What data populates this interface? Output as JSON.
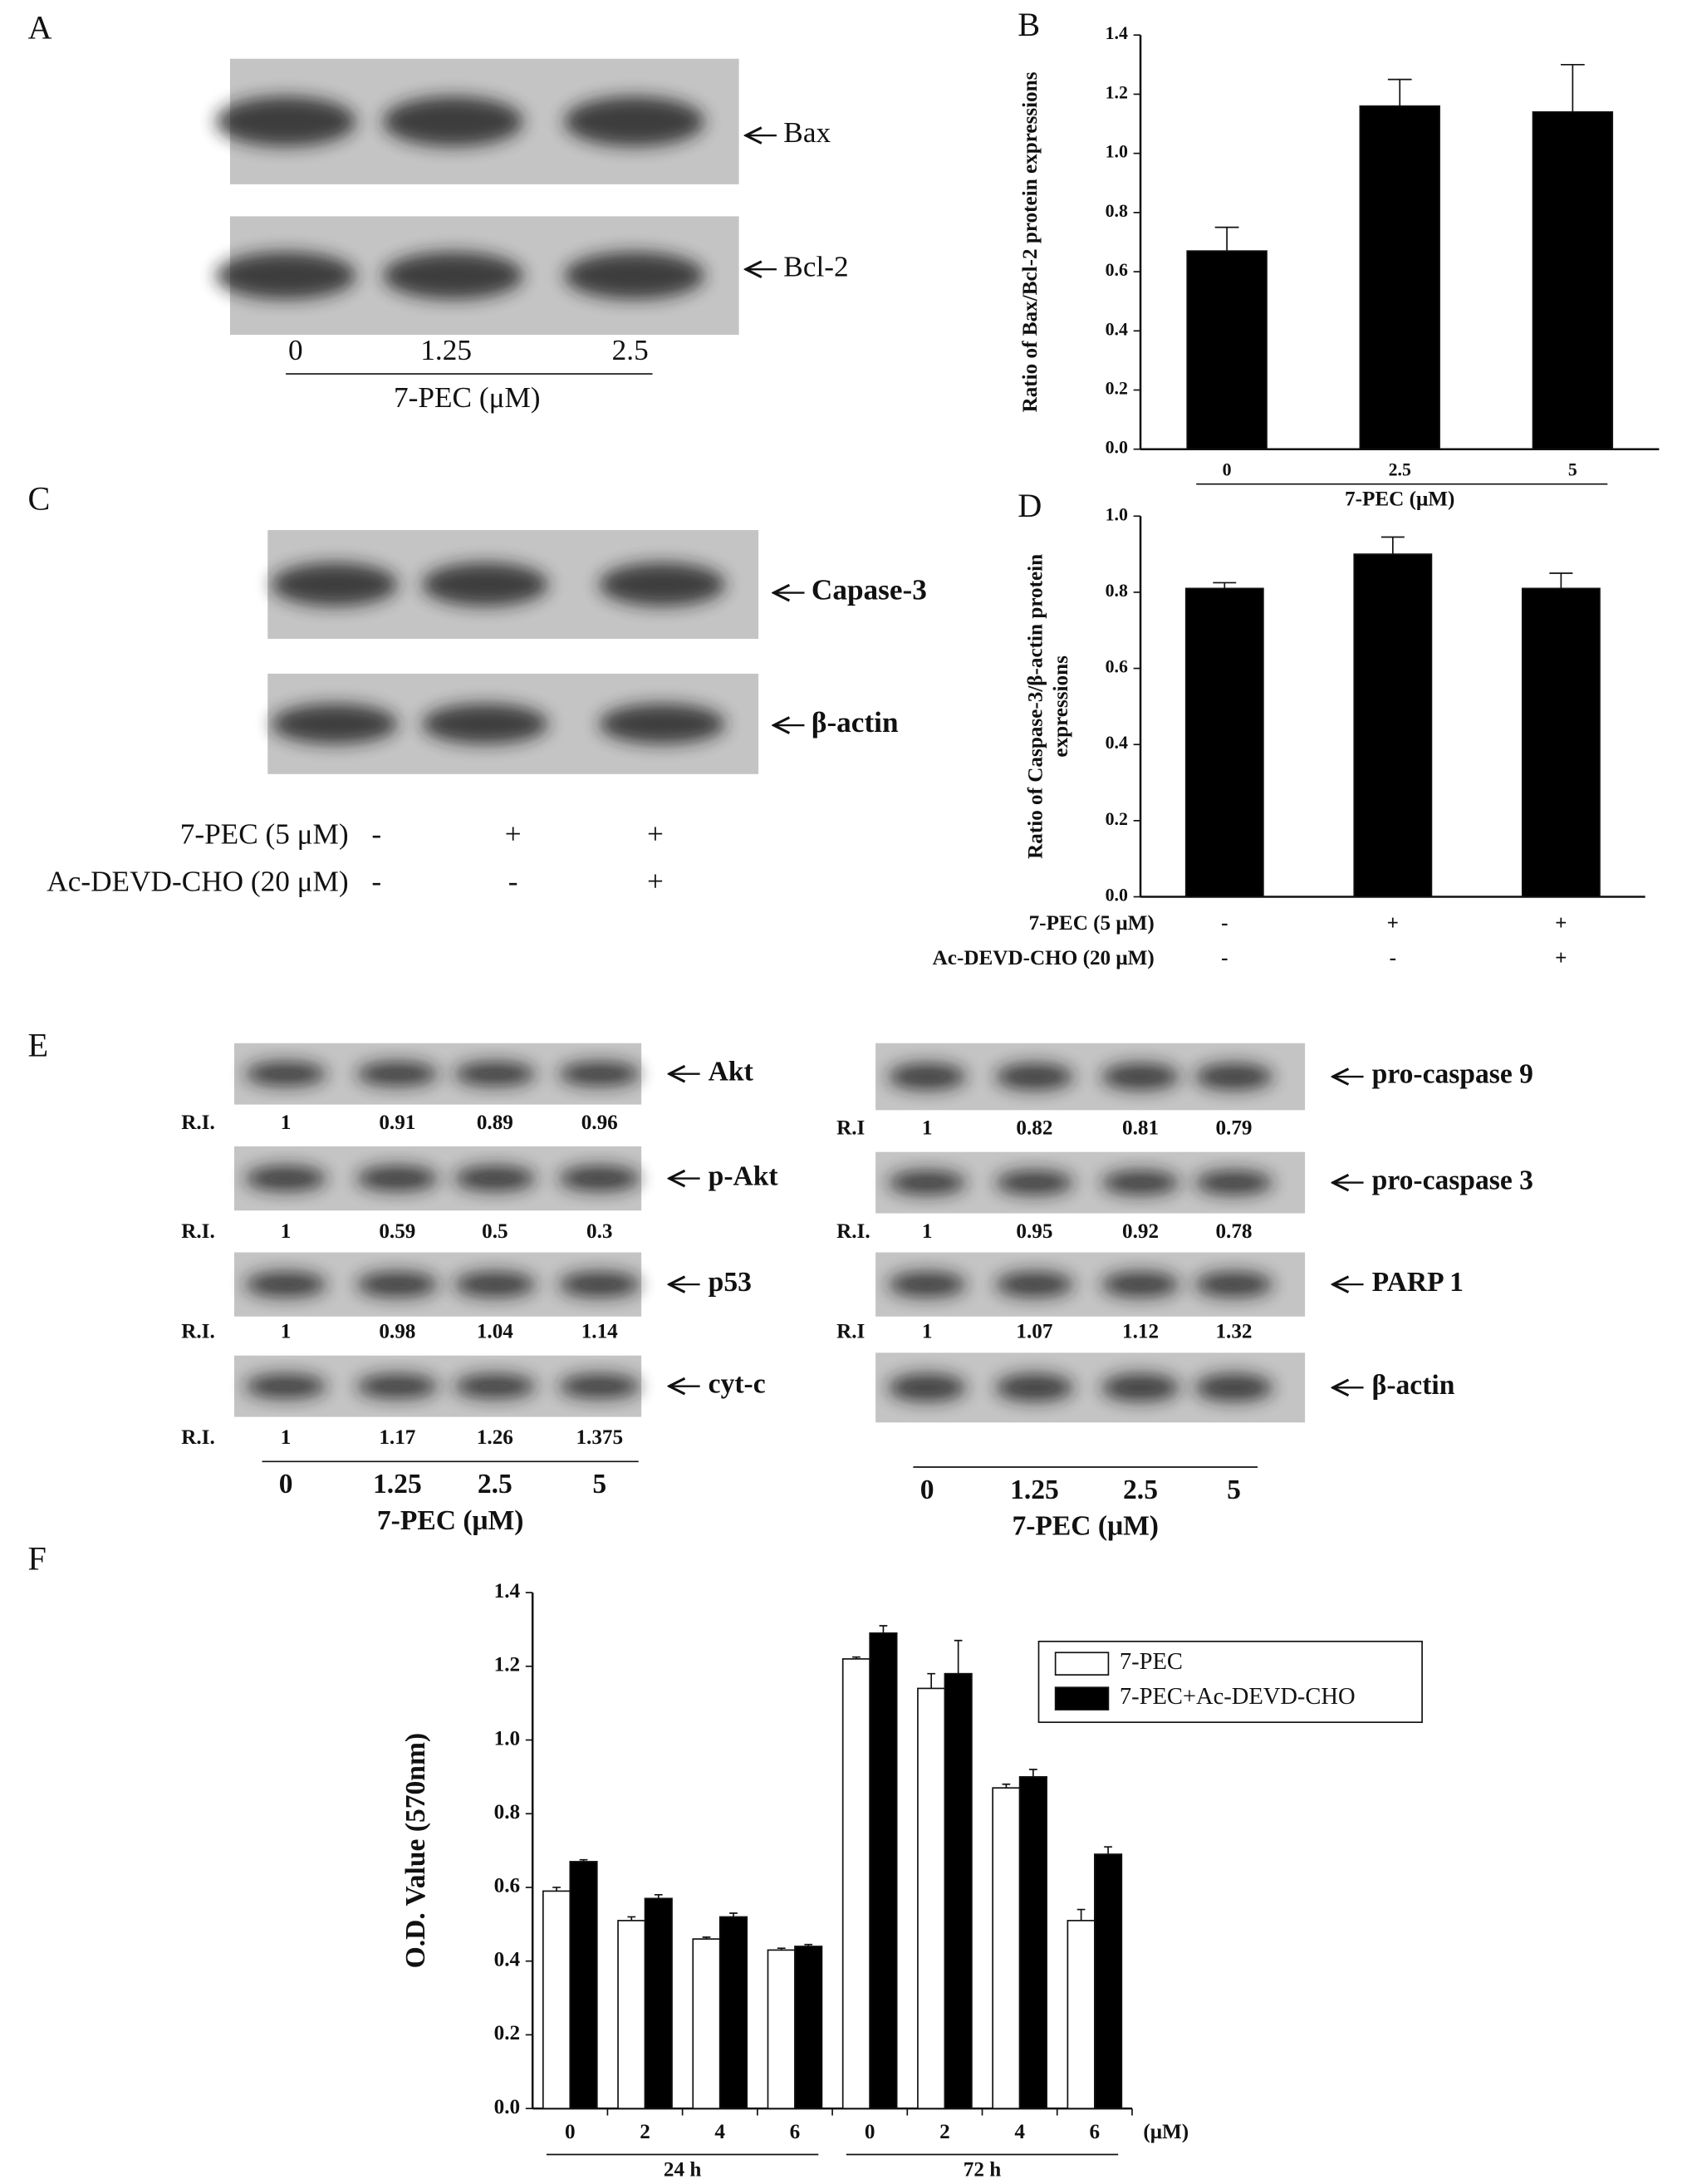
{
  "panel_labels": [
    "A",
    "B",
    "C",
    "D",
    "E",
    "F"
  ],
  "blots": {
    "A": {
      "bands": [
        "Bax",
        "Bcl-2"
      ],
      "lanes": [
        "0",
        "1.25",
        "2.5"
      ],
      "xlabel": "7-PEC (μM)"
    },
    "C": {
      "bands": [
        "Capase-3",
        "β-actin"
      ],
      "treatments": [
        {
          "label": "7-PEC (5 μM)",
          "marks": [
            "-",
            "+",
            "+"
          ]
        },
        {
          "label": "Ac-DEVD-CHO (20 μM)",
          "marks": [
            "-",
            "-",
            "+"
          ]
        }
      ]
    },
    "E_left": {
      "bands": [
        {
          "name": "Akt",
          "ri_label": "R.I.",
          "ri": [
            1,
            0.91,
            0.89,
            0.96
          ]
        },
        {
          "name": "p-Akt",
          "ri_label": "R.I.",
          "ri": [
            1,
            0.59,
            0.5,
            0.3
          ]
        },
        {
          "name": "p53",
          "ri_label": "R.I.",
          "ri": [
            1,
            0.98,
            1.04,
            1.14
          ]
        },
        {
          "name": "cyt-c",
          "ri_label": "R.I.",
          "ri": [
            1,
            1.17,
            1.26,
            1.375
          ]
        }
      ],
      "lanes": [
        "0",
        "1.25",
        "2.5",
        "5"
      ],
      "xlabel": "7-PEC (μM)"
    },
    "E_right": {
      "bands": [
        {
          "name": "pro-caspase 9",
          "ri_label": "R.I",
          "ri": [
            1,
            0.82,
            0.81,
            0.79
          ]
        },
        {
          "name": "pro-caspase 3",
          "ri_label": "R.I.",
          "ri": [
            1,
            0.95,
            0.92,
            0.78
          ]
        },
        {
          "name": "PARP 1",
          "ri_label": "R.I",
          "ri": [
            1,
            1.07,
            1.12,
            1.32
          ]
        },
        {
          "name": "β-actin"
        }
      ],
      "lanes": [
        "0",
        "1.25",
        "2.5",
        "5"
      ],
      "xlabel": "7-PEC (μM)"
    }
  },
  "chart_data": [
    {
      "type": "bar",
      "ylabel": "Ratio of Bax/Bcl-2 protein expressions",
      "xlabel": "7-PEC (μM)",
      "categories": [
        "0",
        "2.5",
        "5"
      ],
      "values": [
        0.67,
        1.16,
        1.14
      ],
      "errors": [
        0.08,
        0.09,
        0.16
      ],
      "color": "#000000",
      "ylim": [
        0,
        1.4
      ],
      "yticks": [
        {
          "value": 0,
          "label": "0.0"
        },
        {
          "value": 0.2,
          "label": "0.2"
        },
        {
          "value": 0.4,
          "label": "0.4"
        },
        {
          "value": 0.6,
          "label": "0.6"
        },
        {
          "value": 0.8,
          "label": "0.8"
        },
        {
          "value": 1.0,
          "label": "1.0"
        },
        {
          "value": 1.2,
          "label": "1.2"
        },
        {
          "value": 1.4,
          "label": "1.4"
        }
      ]
    },
    {
      "type": "bar",
      "ylabel": [
        "Ratio of Caspase-3/β-actin protein",
        "expressions"
      ],
      "values": [
        0.81,
        0.9,
        0.81
      ],
      "errors": [
        0.015,
        0.045,
        0.04
      ],
      "color": "#000000",
      "treatments": [
        {
          "label": "7-PEC (5 μM)",
          "marks": [
            "-",
            "+",
            "+"
          ]
        },
        {
          "label": "Ac-DEVD-CHO (20 μM)",
          "marks": [
            "-",
            "-",
            "+"
          ]
        }
      ],
      "ylim": [
        0,
        1.0
      ],
      "yticks": [
        {
          "value": 0,
          "label": "0.0"
        },
        {
          "value": 0.2,
          "label": "0.2"
        },
        {
          "value": 0.4,
          "label": "0.4"
        },
        {
          "value": 0.6,
          "label": "0.6"
        },
        {
          "value": 0.8,
          "label": "0.8"
        },
        {
          "value": 1.0,
          "label": "1.0"
        }
      ]
    },
    {
      "type": "bar",
      "ylabel": "O.D. Value (570nm)",
      "xunit": "(μM)",
      "categories": [
        "0",
        "2",
        "4",
        "6",
        "0",
        "2",
        "4",
        "6"
      ],
      "groups": [
        "24 h",
        "72 h"
      ],
      "series": [
        {
          "name": "7-PEC",
          "color": "#ffffff",
          "values": [
            0.59,
            0.51,
            0.46,
            0.43,
            1.22,
            1.14,
            0.87,
            0.51
          ],
          "errors": [
            0.01,
            0.01,
            0.005,
            0.005,
            0.005,
            0.04,
            0.01,
            0.03
          ]
        },
        {
          "name": "7-PEC+Ac-DEVD-CHO",
          "color": "#000000",
          "values": [
            0.67,
            0.57,
            0.52,
            0.44,
            1.29,
            1.18,
            0.9,
            0.69
          ],
          "errors": [
            0.005,
            0.01,
            0.01,
            0.005,
            0.02,
            0.09,
            0.02,
            0.02
          ]
        }
      ],
      "ylim": [
        0,
        1.4
      ],
      "yticks": [
        {
          "value": 0,
          "label": "0.0"
        },
        {
          "value": 0.2,
          "label": "0.2"
        },
        {
          "value": 0.4,
          "label": "0.4"
        },
        {
          "value": 0.6,
          "label": "0.6"
        },
        {
          "value": 0.8,
          "label": "0.8"
        },
        {
          "value": 1.0,
          "label": "1.0"
        },
        {
          "value": 1.2,
          "label": "1.2"
        },
        {
          "value": 1.4,
          "label": "1.4"
        }
      ]
    }
  ]
}
